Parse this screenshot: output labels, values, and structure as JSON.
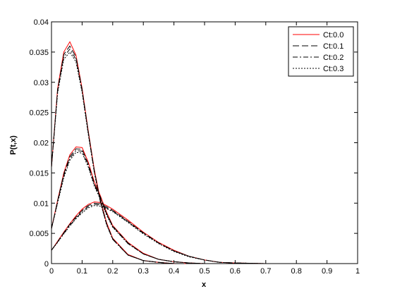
{
  "chart_data": {
    "type": "line",
    "title": "",
    "xlabel": "x",
    "ylabel": "P(t,x)",
    "xlim": [
      0,
      1
    ],
    "ylim": [
      0,
      0.04
    ],
    "x_ticks": [
      "0",
      "0.1",
      "0.2",
      "0.3",
      "0.4",
      "0.5",
      "0.6",
      "0.7",
      "0.8",
      "0.9",
      "1"
    ],
    "y_ticks": [
      "0",
      "0.005",
      "0.01",
      "0.015",
      "0.02",
      "0.025",
      "0.03",
      "0.035",
      "0.04"
    ],
    "grid": false,
    "legend_position": "top-right",
    "series": [
      {
        "name": "Ct:0.0",
        "color": "#ff0000",
        "dash": "solid",
        "curves": [
          {
            "x": [
              0,
              0.02,
              0.04,
              0.06,
              0.08,
              0.1,
              0.12,
              0.14,
              0.16,
              0.18,
              0.2,
              0.25,
              0.3,
              0.35,
              0.4,
              0.45,
              0.5,
              0.55,
              0.6,
              0.7,
              0.8,
              0.9,
              1.0
            ],
            "y": [
              0.016,
              0.029,
              0.035,
              0.0367,
              0.0345,
              0.029,
              0.022,
              0.0155,
              0.0105,
              0.0068,
              0.0042,
              0.0015,
              0.0005,
              0.0002,
              0,
              0,
              0,
              0,
              0,
              0,
              0,
              0,
              0
            ]
          },
          {
            "x": [
              0,
              0.02,
              0.04,
              0.06,
              0.08,
              0.1,
              0.12,
              0.14,
              0.16,
              0.18,
              0.2,
              0.25,
              0.3,
              0.35,
              0.4,
              0.45,
              0.5,
              0.55,
              0.6,
              0.7,
              0.8,
              0.9,
              1.0
            ],
            "y": [
              0.0058,
              0.0105,
              0.015,
              0.018,
              0.0193,
              0.0192,
              0.0168,
              0.0135,
              0.0112,
              0.0085,
              0.0063,
              0.0035,
              0.0017,
              0.0007,
              0.0003,
              0.0001,
              0,
              0,
              0,
              0,
              0,
              0,
              0
            ]
          },
          {
            "x": [
              0,
              0.02,
              0.04,
              0.06,
              0.08,
              0.1,
              0.12,
              0.14,
              0.16,
              0.18,
              0.2,
              0.25,
              0.3,
              0.35,
              0.4,
              0.45,
              0.5,
              0.55,
              0.6,
              0.7,
              0.8,
              0.9,
              1.0
            ],
            "y": [
              0.0022,
              0.0037,
              0.0052,
              0.0066,
              0.0079,
              0.009,
              0.0098,
              0.0102,
              0.0101,
              0.0096,
              0.009,
              0.0072,
              0.0052,
              0.0035,
              0.0022,
              0.0012,
              0.0006,
              0.0002,
              0.0001,
              0,
              0,
              0,
              0
            ]
          }
        ]
      },
      {
        "name": "Ct:0.1",
        "color": "#000000",
        "dash": "long-dash",
        "curves": [
          {
            "x": [
              0,
              0.02,
              0.04,
              0.06,
              0.08,
              0.1,
              0.12,
              0.14,
              0.16,
              0.18,
              0.2,
              0.25,
              0.3,
              0.35,
              0.4,
              0.45,
              0.5,
              0.55,
              0.6,
              0.7,
              0.8,
              0.9,
              1.0
            ],
            "y": [
              0.016,
              0.0288,
              0.0346,
              0.036,
              0.0342,
              0.0288,
              0.0218,
              0.0153,
              0.0103,
              0.0066,
              0.0041,
              0.0014,
              0.0005,
              0.0002,
              0,
              0,
              0,
              0,
              0,
              0,
              0,
              0,
              0
            ]
          },
          {
            "x": [
              0,
              0.02,
              0.04,
              0.06,
              0.08,
              0.1,
              0.12,
              0.14,
              0.16,
              0.18,
              0.2,
              0.25,
              0.3,
              0.35,
              0.4,
              0.45,
              0.5,
              0.55,
              0.6,
              0.7,
              0.8,
              0.9,
              1.0
            ],
            "y": [
              0.0058,
              0.0104,
              0.0148,
              0.0177,
              0.019,
              0.0189,
              0.0165,
              0.0132,
              0.011,
              0.0083,
              0.0062,
              0.0034,
              0.0016,
              0.0007,
              0.0003,
              0.0001,
              0,
              0,
              0,
              0,
              0,
              0,
              0
            ]
          },
          {
            "x": [
              0,
              0.02,
              0.04,
              0.06,
              0.08,
              0.1,
              0.12,
              0.14,
              0.16,
              0.18,
              0.2,
              0.25,
              0.3,
              0.35,
              0.4,
              0.45,
              0.5,
              0.55,
              0.6,
              0.7,
              0.8,
              0.9,
              1.0
            ],
            "y": [
              0.0022,
              0.0036,
              0.0051,
              0.0065,
              0.0077,
              0.0088,
              0.0096,
              0.01,
              0.0099,
              0.0094,
              0.0088,
              0.007,
              0.0051,
              0.0034,
              0.0021,
              0.0012,
              0.0006,
              0.0002,
              0.0001,
              0,
              0,
              0,
              0
            ]
          }
        ]
      },
      {
        "name": "Ct:0.2",
        "color": "#000000",
        "dash": "dash-dot",
        "curves": [
          {
            "x": [
              0,
              0.02,
              0.04,
              0.06,
              0.08,
              0.1,
              0.12,
              0.14,
              0.16,
              0.18,
              0.2,
              0.25,
              0.3,
              0.35,
              0.4,
              0.45,
              0.5,
              0.55,
              0.6,
              0.7,
              0.8,
              0.9,
              1.0
            ],
            "y": [
              0.016,
              0.0285,
              0.0342,
              0.0355,
              0.0338,
              0.0286,
              0.0216,
              0.0151,
              0.0102,
              0.0065,
              0.004,
              0.0014,
              0.0005,
              0.0002,
              0,
              0,
              0,
              0,
              0,
              0,
              0,
              0,
              0
            ]
          },
          {
            "x": [
              0,
              0.02,
              0.04,
              0.06,
              0.08,
              0.1,
              0.12,
              0.14,
              0.16,
              0.18,
              0.2,
              0.25,
              0.3,
              0.35,
              0.4,
              0.45,
              0.5,
              0.55,
              0.6,
              0.7,
              0.8,
              0.9,
              1.0
            ],
            "y": [
              0.0058,
              0.0102,
              0.0145,
              0.0174,
              0.0187,
              0.0186,
              0.0162,
              0.013,
              0.0108,
              0.0082,
              0.0061,
              0.0033,
              0.0016,
              0.0007,
              0.0003,
              0.0001,
              0,
              0,
              0,
              0,
              0,
              0,
              0
            ]
          },
          {
            "x": [
              0,
              0.02,
              0.04,
              0.06,
              0.08,
              0.1,
              0.12,
              0.14,
              0.16,
              0.18,
              0.2,
              0.25,
              0.3,
              0.35,
              0.4,
              0.45,
              0.5,
              0.55,
              0.6,
              0.7,
              0.8,
              0.9,
              1.0
            ],
            "y": [
              0.0022,
              0.0036,
              0.005,
              0.0063,
              0.0075,
              0.0086,
              0.0094,
              0.0098,
              0.0097,
              0.0092,
              0.0087,
              0.0069,
              0.005,
              0.0034,
              0.0021,
              0.0012,
              0.0006,
              0.0002,
              0.0001,
              0,
              0,
              0,
              0
            ]
          }
        ]
      },
      {
        "name": "Ct:0.3",
        "color": "#000000",
        "dash": "dotted",
        "curves": [
          {
            "x": [
              0,
              0.02,
              0.04,
              0.06,
              0.08,
              0.1,
              0.12,
              0.14,
              0.16,
              0.18,
              0.2,
              0.25,
              0.3,
              0.35,
              0.4,
              0.45,
              0.5,
              0.55,
              0.6,
              0.7,
              0.8,
              0.9,
              1.0
            ],
            "y": [
              0.016,
              0.0282,
              0.0338,
              0.035,
              0.0334,
              0.0283,
              0.0214,
              0.015,
              0.0101,
              0.0064,
              0.004,
              0.0014,
              0.0005,
              0.0002,
              0,
              0,
              0,
              0,
              0,
              0,
              0,
              0,
              0
            ]
          },
          {
            "x": [
              0,
              0.02,
              0.04,
              0.06,
              0.08,
              0.1,
              0.12,
              0.14,
              0.16,
              0.18,
              0.2,
              0.25,
              0.3,
              0.35,
              0.4,
              0.45,
              0.5,
              0.55,
              0.6,
              0.7,
              0.8,
              0.9,
              1.0
            ],
            "y": [
              0.0058,
              0.01,
              0.0142,
              0.0171,
              0.0184,
              0.0183,
              0.016,
              0.0128,
              0.0106,
              0.008,
              0.006,
              0.0033,
              0.0016,
              0.0007,
              0.0003,
              0.0001,
              0,
              0,
              0,
              0,
              0,
              0,
              0
            ]
          },
          {
            "x": [
              0,
              0.02,
              0.04,
              0.06,
              0.08,
              0.1,
              0.12,
              0.14,
              0.16,
              0.18,
              0.2,
              0.25,
              0.3,
              0.35,
              0.4,
              0.45,
              0.5,
              0.55,
              0.6,
              0.7,
              0.8,
              0.9,
              1.0
            ],
            "y": [
              0.0022,
              0.0035,
              0.0049,
              0.0062,
              0.0074,
              0.0084,
              0.0092,
              0.0096,
              0.0095,
              0.0091,
              0.0086,
              0.0068,
              0.0049,
              0.0033,
              0.002,
              0.0011,
              0.0006,
              0.0002,
              0.0001,
              0,
              0,
              0,
              0
            ]
          }
        ]
      }
    ]
  }
}
